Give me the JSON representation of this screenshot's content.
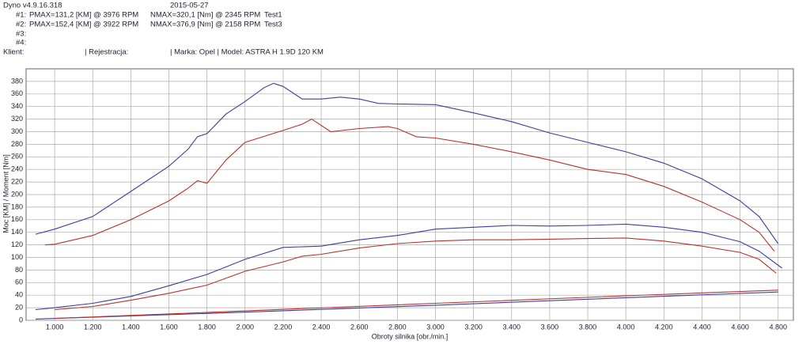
{
  "header": {
    "app": "Dyno v4.9.16.318",
    "date": "2015-05-27",
    "runs": [
      {
        "id": "#1:",
        "pmax": "PMAX=131,2 [KM] @ 3976 RPM",
        "nmax": "NMAX=320,1 [Nm] @ 2345 RPM",
        "name": "Test1"
      },
      {
        "id": "#2:",
        "pmax": "PMAX=152,4 [KM] @ 3922 RPM",
        "nmax": "NMAX=376,9 [Nm] @ 2158 RPM",
        "name": "Test3"
      },
      {
        "id": "#3:"
      },
      {
        "id": "#4:"
      }
    ],
    "client_label": "Klient:",
    "registration_label": "| Rejestracja:",
    "vehicle": "| Marka: Opel | Model: ASTRA H 1.9D 120 KM"
  },
  "chart_data": {
    "type": "line",
    "y_label": "Moc [KM] / Moment [Nm]",
    "x_label": "Obroty silnika [obr./min.]",
    "xlim": [
      850,
      4880
    ],
    "ylim": [
      0,
      400
    ],
    "grid": true,
    "xticks": [
      {
        "value": 1000,
        "label": "1.000"
      },
      {
        "value": 1200,
        "label": "1.200"
      },
      {
        "value": 1400,
        "label": "1.400"
      },
      {
        "value": 1600,
        "label": "1.600"
      },
      {
        "value": 1800,
        "label": "1.800"
      },
      {
        "value": 2000,
        "label": "2.000"
      },
      {
        "value": 2200,
        "label": "2.200"
      },
      {
        "value": 2400,
        "label": "2.400"
      },
      {
        "value": 2600,
        "label": "2.600"
      },
      {
        "value": 2800,
        "label": "2.800"
      },
      {
        "value": 3000,
        "label": "3.000"
      },
      {
        "value": 3200,
        "label": "3.200"
      },
      {
        "value": 3400,
        "label": "3.400"
      },
      {
        "value": 3600,
        "label": "3.600"
      },
      {
        "value": 3800,
        "label": "3.800"
      },
      {
        "value": 4000,
        "label": "4.000"
      },
      {
        "value": 4200,
        "label": "4.200"
      },
      {
        "value": 4400,
        "label": "4.400"
      },
      {
        "value": 4600,
        "label": "4.600"
      },
      {
        "value": 4800,
        "label": "4.800"
      }
    ],
    "yticks": [
      0,
      20,
      40,
      60,
      80,
      100,
      120,
      140,
      160,
      180,
      200,
      220,
      240,
      260,
      280,
      300,
      320,
      340,
      360,
      380
    ],
    "series": [
      {
        "color": "#3b3f9c",
        "x": [
          900,
          1000,
          1200,
          1400,
          1600,
          1700,
          1750,
          1800,
          1900,
          2000,
          2100,
          2150,
          2200,
          2300,
          2400,
          2500,
          2600,
          2700,
          2800,
          3000,
          3200,
          3400,
          3600,
          3800,
          4000,
          4200,
          4400,
          4600,
          4700,
          4800
        ],
        "values": [
          137,
          145,
          165,
          205,
          245,
          272,
          292,
          297,
          328,
          348,
          370,
          377,
          372,
          352,
          352,
          355,
          352,
          345,
          344,
          343,
          330,
          316,
          298,
          283,
          268,
          250,
          225,
          190,
          165,
          122
        ]
      },
      {
        "color": "#b8332b",
        "x": [
          950,
          1000,
          1200,
          1400,
          1600,
          1700,
          1750,
          1800,
          1900,
          2000,
          2200,
          2300,
          2350,
          2450,
          2600,
          2750,
          2800,
          2900,
          3000,
          3200,
          3400,
          3600,
          3800,
          4000,
          4200,
          4400,
          4600,
          4700,
          4780
        ],
        "values": [
          120,
          121,
          135,
          160,
          190,
          210,
          222,
          218,
          255,
          283,
          302,
          312,
          320,
          300,
          305,
          308,
          305,
          292,
          290,
          280,
          268,
          255,
          240,
          232,
          213,
          188,
          160,
          140,
          110
        ]
      },
      {
        "color": "#3b3f9c",
        "x": [
          900,
          1000,
          1200,
          1400,
          1600,
          1800,
          2000,
          2200,
          2400,
          2600,
          2800,
          3000,
          3200,
          3400,
          3600,
          3800,
          4000,
          4200,
          4400,
          4600,
          4700,
          4820
        ],
        "values": [
          17,
          20,
          27,
          38,
          55,
          73,
          97,
          116,
          118,
          128,
          135,
          145,
          148,
          151,
          150,
          151,
          153,
          148,
          140,
          125,
          110,
          83
        ]
      },
      {
        "color": "#b8332b",
        "x": [
          1000,
          1200,
          1400,
          1600,
          1800,
          2000,
          2200,
          2300,
          2400,
          2600,
          2800,
          3000,
          3200,
          3400,
          3600,
          3800,
          4000,
          4200,
          4400,
          4600,
          4700,
          4790
        ],
        "values": [
          17,
          22,
          32,
          43,
          56,
          78,
          93,
          102,
          105,
          115,
          122,
          126,
          128,
          128,
          129,
          130,
          131,
          126,
          118,
          108,
          97,
          75
        ]
      },
      {
        "color": "#3b3f9c",
        "x": [
          900,
          1000,
          2000,
          3000,
          4000,
          4800
        ],
        "values": [
          2,
          3,
          13,
          24,
          36,
          45
        ]
      },
      {
        "color": "#b8332b",
        "x": [
          1000,
          2000,
          3000,
          4000,
          4800
        ],
        "values": [
          3,
          15,
          27,
          39,
          48
        ]
      }
    ]
  }
}
